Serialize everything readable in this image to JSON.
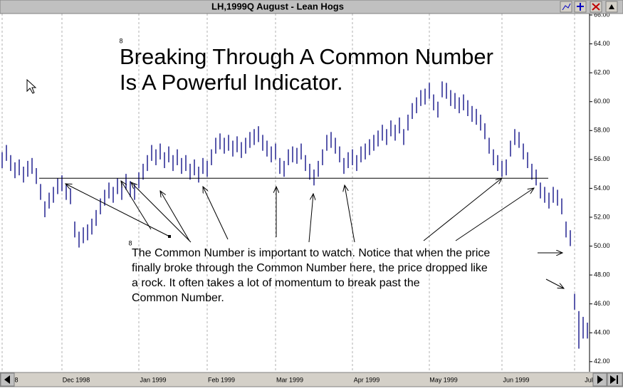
{
  "window_title": "LH,1999Q  August - Lean Hogs",
  "annotation": {
    "headline": [
      "Breaking Through A Common Number",
      "Is A Powerful Indicator."
    ],
    "body": [
      "The Common Number is important to watch. Notice that when the price",
      "finally broke through the Common Number here, the price dropped like",
      "a rock. It often takes a lot of momentum to break past the",
      "Common Number."
    ],
    "markers": [
      "8",
      "8"
    ]
  },
  "chart_data": {
    "type": "ohlc",
    "color": "#000080",
    "categories": [
      "8",
      null,
      null,
      null,
      null,
      null,
      null,
      null,
      null,
      null,
      null,
      null,
      null,
      null,
      "Dec 1998",
      null,
      null,
      null,
      null,
      null,
      null,
      null,
      null,
      null,
      null,
      null,
      null,
      null,
      null,
      null,
      null,
      null,
      "Jan 1999",
      null,
      null,
      null,
      null,
      null,
      null,
      null,
      null,
      null,
      null,
      null,
      null,
      null,
      null,
      null,
      "Feb 1999",
      null,
      null,
      null,
      null,
      null,
      null,
      null,
      null,
      null,
      null,
      null,
      null,
      null,
      null,
      null,
      "Mar 1999",
      null,
      null,
      null,
      null,
      null,
      null,
      null,
      null,
      null,
      null,
      null,
      null,
      null,
      null,
      null,
      null,
      null,
      "Apr 1999",
      null,
      null,
      null,
      null,
      null,
      null,
      null,
      null,
      null,
      null,
      null,
      null,
      null,
      null,
      null,
      null,
      null,
      "May 1999",
      null,
      null,
      null,
      null,
      null,
      null,
      null,
      null,
      null,
      null,
      null,
      null,
      null,
      null,
      null,
      null,
      "Jun 1999",
      null,
      null,
      null,
      null,
      null,
      null,
      null,
      null,
      null,
      null,
      null,
      null,
      null,
      null,
      null,
      null,
      "Jul",
      null,
      null,
      null
    ],
    "high": [
      56.5,
      57.0,
      56.3,
      55.8,
      56.0,
      55.5,
      55.9,
      56.1,
      55.4,
      54.3,
      53.1,
      53.7,
      54.1,
      54.7,
      54.9,
      54.3,
      54.0,
      51.7,
      51.0,
      51.3,
      51.5,
      51.9,
      52.5,
      53.3,
      53.9,
      54.4,
      54.1,
      54.7,
      54.3,
      55.0,
      54.5,
      54.3,
      55.1,
      55.7,
      56.3,
      57.0,
      56.7,
      57.1,
      56.5,
      56.9,
      56.3,
      56.7,
      56.1,
      56.3,
      55.7,
      56.0,
      55.5,
      56.1,
      55.9,
      56.7,
      57.5,
      57.8,
      57.5,
      57.7,
      57.3,
      57.6,
      57.2,
      57.5,
      57.9,
      58.1,
      58.3,
      57.7,
      57.3,
      56.9,
      57.1,
      56.1,
      55.9,
      56.7,
      56.9,
      56.8,
      57.1,
      56.3,
      55.7,
      55.3,
      55.9,
      56.7,
      57.7,
      57.9,
      57.5,
      56.9,
      56.1,
      56.5,
      56.7,
      56.3,
      56.9,
      57.1,
      57.4,
      57.7,
      58.0,
      58.4,
      58.1,
      58.7,
      58.4,
      58.9,
      58.1,
      59.1,
      59.9,
      60.3,
      60.8,
      60.9,
      61.3,
      60.5,
      60.0,
      61.4,
      61.3,
      60.8,
      60.6,
      60.3,
      60.5,
      60.1,
      59.7,
      59.5,
      59.1,
      58.5,
      57.5,
      56.7,
      56.3,
      55.9,
      56.0,
      57.3,
      58.1,
      57.9,
      57.1,
      56.5,
      55.7,
      55.3,
      54.4,
      54.1,
      53.7,
      54.1,
      53.9,
      53.3,
      51.7,
      51.1,
      46.7,
      45.5,
      45.1,
      44.7
    ],
    "low": [
      55.4,
      55.9,
      55.2,
      54.7,
      54.9,
      54.4,
      54.8,
      55.0,
      54.3,
      53.2,
      52.0,
      52.6,
      53.0,
      53.6,
      53.8,
      53.2,
      52.9,
      50.6,
      49.9,
      50.2,
      50.4,
      50.8,
      51.4,
      52.2,
      52.8,
      53.3,
      53.0,
      53.6,
      53.2,
      53.9,
      53.4,
      53.2,
      54.0,
      54.6,
      55.2,
      55.9,
      55.6,
      56.0,
      55.4,
      55.8,
      55.2,
      55.6,
      55.0,
      55.2,
      54.6,
      54.9,
      54.4,
      55.0,
      54.8,
      55.6,
      56.4,
      56.7,
      56.4,
      56.6,
      56.2,
      56.5,
      56.1,
      56.4,
      56.8,
      57.0,
      57.2,
      56.6,
      56.2,
      55.8,
      56.0,
      55.0,
      54.8,
      55.6,
      55.8,
      55.7,
      56.0,
      55.2,
      54.6,
      54.2,
      54.8,
      55.6,
      56.6,
      56.8,
      56.4,
      55.8,
      55.0,
      55.4,
      55.6,
      55.2,
      55.8,
      56.0,
      56.3,
      56.6,
      56.9,
      57.3,
      57.0,
      57.6,
      57.3,
      57.8,
      57.0,
      58.0,
      58.8,
      59.2,
      59.7,
      59.8,
      60.2,
      59.4,
      58.9,
      60.3,
      60.2,
      59.7,
      59.5,
      59.2,
      59.4,
      59.0,
      58.6,
      58.4,
      58.0,
      57.4,
      56.4,
      55.6,
      55.2,
      54.8,
      54.9,
      56.2,
      57.0,
      56.8,
      56.0,
      55.4,
      54.6,
      54.2,
      53.3,
      53.0,
      52.6,
      53.0,
      52.8,
      52.2,
      50.6,
      50.0,
      45.6,
      42.9,
      43.6,
      43.6
    ],
    "hline": 54.7,
    "ylim": [
      41.3,
      66.1
    ],
    "yticks": [
      {
        "value": 42,
        "label": "42.00"
      },
      {
        "value": 44,
        "label": "44.00"
      },
      {
        "value": 46,
        "label": "46.00"
      },
      {
        "value": 48,
        "label": "48.00"
      },
      {
        "value": 50,
        "label": "50.00"
      },
      {
        "value": 52,
        "label": "52.00"
      },
      {
        "value": 54,
        "label": "54.00"
      },
      {
        "value": 56,
        "label": "56.00"
      },
      {
        "value": 58,
        "label": "58.00"
      },
      {
        "value": 60,
        "label": "60.00"
      },
      {
        "value": 62,
        "label": "62.00"
      },
      {
        "value": 64,
        "label": "64.00"
      },
      {
        "value": 66,
        "label": "66.00"
      }
    ],
    "grid": true
  }
}
